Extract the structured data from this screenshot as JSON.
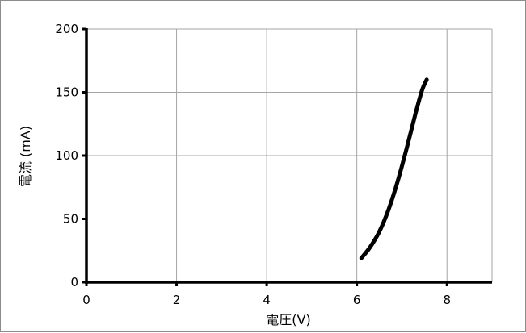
{
  "chart_data": {
    "type": "line",
    "xlabel": "電圧(V)",
    "ylabel": "電流 (mA)",
    "xlim": [
      0,
      9
    ],
    "ylim": [
      0,
      200
    ],
    "x_ticks": [
      0,
      2,
      4,
      6,
      8
    ],
    "y_ticks": [
      0,
      50,
      100,
      150,
      200
    ],
    "grid": true,
    "legend": "none",
    "series": [
      {
        "color": "#000000",
        "x": [
          6.1,
          6.3,
          6.5,
          6.7,
          6.9,
          7.1,
          7.3,
          7.45,
          7.55
        ],
        "y": [
          19,
          28,
          40,
          57,
          79,
          105,
          133,
          152,
          160
        ]
      }
    ]
  }
}
